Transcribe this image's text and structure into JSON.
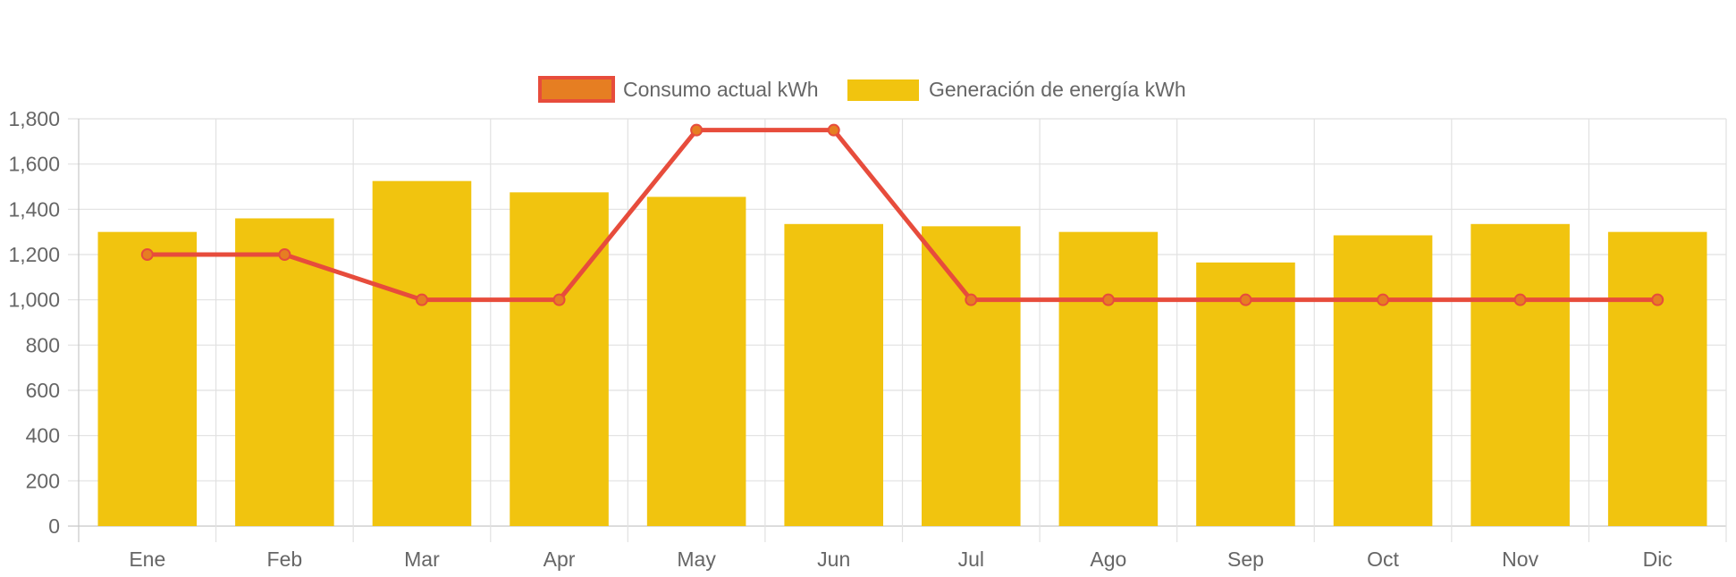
{
  "chart_data": {
    "type": "bar",
    "categories": [
      "Ene",
      "Feb",
      "Mar",
      "Apr",
      "May",
      "Jun",
      "Jul",
      "Ago",
      "Sep",
      "Oct",
      "Nov",
      "Dic"
    ],
    "series": [
      {
        "name": "Consumo actual kWh",
        "type": "line",
        "values": [
          1200,
          1200,
          1000,
          1000,
          1750,
          1750,
          1000,
          1000,
          1000,
          1000,
          1000,
          1000
        ],
        "color": "#e74c3c",
        "point_fill": "#e67e22"
      },
      {
        "name": "Generación de energía kWh",
        "type": "bar",
        "values": [
          1300,
          1360,
          1525,
          1475,
          1455,
          1335,
          1325,
          1300,
          1165,
          1285,
          1335,
          1300
        ],
        "color": "#f1c40f"
      }
    ],
    "ylim": [
      0,
      1800
    ],
    "yticks": [
      "0",
      "200",
      "400",
      "600",
      "800",
      "1,000",
      "1,200",
      "1,400",
      "1,600",
      "1,800"
    ],
    "grid": true,
    "legend_position": "top"
  }
}
